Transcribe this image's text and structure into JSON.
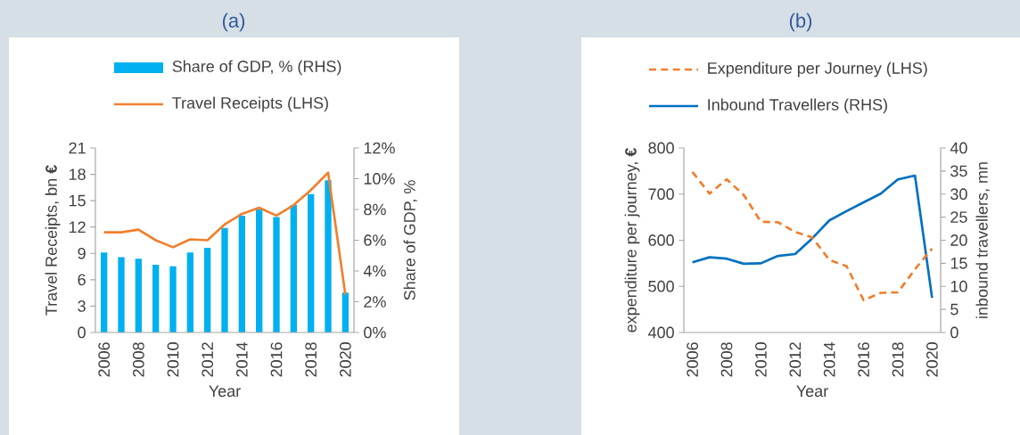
{
  "chart_data": [
    {
      "type": "line",
      "title": "(a)",
      "xlabel": "Year",
      "ylabel": "Travel Receipts, bn **€**",
      "y2label": "Share of GDP, %",
      "categories": [
        "2006",
        null,
        "2008",
        null,
        "2010",
        null,
        "2012",
        null,
        "2014",
        null,
        "2016",
        null,
        "2018",
        null,
        "2020"
      ],
      "series": [
        {
          "name": "Share of GDP, % (RHS)",
          "type": "bar",
          "axis": "y2",
          "color": "#00b0f0",
          "values": [
            5.2,
            4.9,
            4.8,
            4.4,
            4.3,
            5.2,
            5.5,
            6.8,
            7.6,
            8.0,
            7.5,
            8.3,
            9.0,
            9.9,
            2.6
          ]
        },
        {
          "name": "Travel Receipts (LHS)",
          "type": "line",
          "axis": "y",
          "color": "#f07f2d",
          "line_style": "solid",
          "values": [
            11.4,
            11.4,
            11.7,
            10.5,
            9.7,
            10.6,
            10.5,
            12.3,
            13.5,
            14.2,
            13.3,
            14.5,
            16.2,
            18.2,
            4.3
          ]
        }
      ],
      "ylim": [
        0,
        21
      ],
      "yticks": [
        0,
        3,
        6,
        9,
        12,
        15,
        18,
        21
      ],
      "y2lim": [
        0,
        12
      ],
      "y2ticks": [
        {
          "value": 0,
          "label": "0%"
        },
        {
          "value": 2,
          "label": "2%"
        },
        {
          "value": 4,
          "label": "4%"
        },
        {
          "value": 6,
          "label": "6%"
        },
        {
          "value": 8,
          "label": "8%"
        },
        {
          "value": 10,
          "label": "10%"
        },
        {
          "value": 12,
          "label": "12%"
        }
      ],
      "legend": "top"
    },
    {
      "type": "line",
      "title": "(b)",
      "xlabel": "Year",
      "ylabel": "expenditure per journey, **€**",
      "y2label": "inbound travellers, mn",
      "categories": [
        "2006",
        null,
        "2008",
        null,
        "2010",
        null,
        "2012",
        null,
        "2014",
        null,
        "2016",
        null,
        "2018",
        null,
        "2020"
      ],
      "series": [
        {
          "name": "Expenditure per Journey (LHS)",
          "axis": "y",
          "color": "#f07f2d",
          "line_style": "dashed",
          "values": [
            748,
            701,
            732,
            698,
            640,
            639,
            618,
            606,
            557,
            544,
            470,
            486,
            487,
            537,
            582
          ]
        },
        {
          "name": "Inbound Travellers (RHS)",
          "axis": "y2",
          "color": "#0070c0",
          "line_style": "solid",
          "values": [
            15.2,
            16.3,
            16.0,
            14.9,
            15.0,
            16.6,
            17.0,
            20.4,
            24.3,
            26.3,
            28.2,
            30.1,
            33.2,
            34.0,
            7.5
          ]
        }
      ],
      "ylim": [
        400,
        800
      ],
      "yticks": [
        400,
        500,
        600,
        700,
        800
      ],
      "y2lim": [
        0,
        40
      ],
      "y2ticks": [
        0,
        5,
        10,
        15,
        20,
        25,
        30,
        35,
        40
      ],
      "legend": "top"
    }
  ]
}
